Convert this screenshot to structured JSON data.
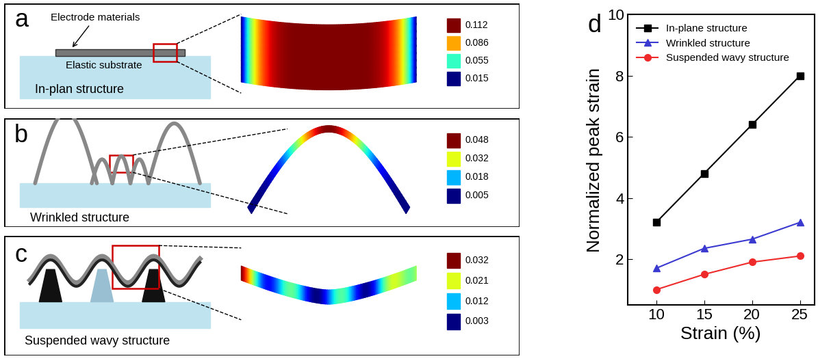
{
  "panels": [
    {
      "annotation": "a",
      "texts": [
        "Electrode materials",
        "Elastic substrate"
      ],
      "caption": "In-plan structure",
      "colorbar_ticks": [
        0.112,
        0.086,
        0.055,
        0.015
      ]
    },
    {
      "annotation": "b",
      "caption": "Wrinkled structure",
      "colorbar_ticks": [
        0.048,
        0.032,
        0.018,
        0.005
      ]
    },
    {
      "annotation": "c",
      "caption": "Suspended wavy structure",
      "colorbar_ticks": [
        0.032,
        0.021,
        0.012,
        0.003
      ]
    }
  ],
  "chart_data": {
    "type": "line",
    "annotation": "d",
    "xlabel": "Strain (%)",
    "ylabel": "Normalized peak strain",
    "x": [
      10,
      15,
      20,
      25
    ],
    "xlim": [
      7,
      26.5
    ],
    "xticks": [
      10,
      15,
      20,
      25
    ],
    "ylim": [
      0.5,
      10
    ],
    "yticks": [
      2,
      4,
      6,
      8,
      10
    ],
    "legend": "upper left",
    "series": [
      {
        "name": "In-plane structure",
        "color": "#000000",
        "marker": "square",
        "values": [
          3.2,
          4.8,
          6.4,
          8.0
        ]
      },
      {
        "name": "Wrinkled structure",
        "color": "#3a3ad0",
        "marker": "triangle",
        "values": [
          1.7,
          2.35,
          2.65,
          3.2
        ]
      },
      {
        "name": "Suspended wavy structure",
        "color": "#ee2a2a",
        "marker": "circle",
        "values": [
          1.0,
          1.5,
          1.9,
          2.1
        ]
      }
    ]
  }
}
